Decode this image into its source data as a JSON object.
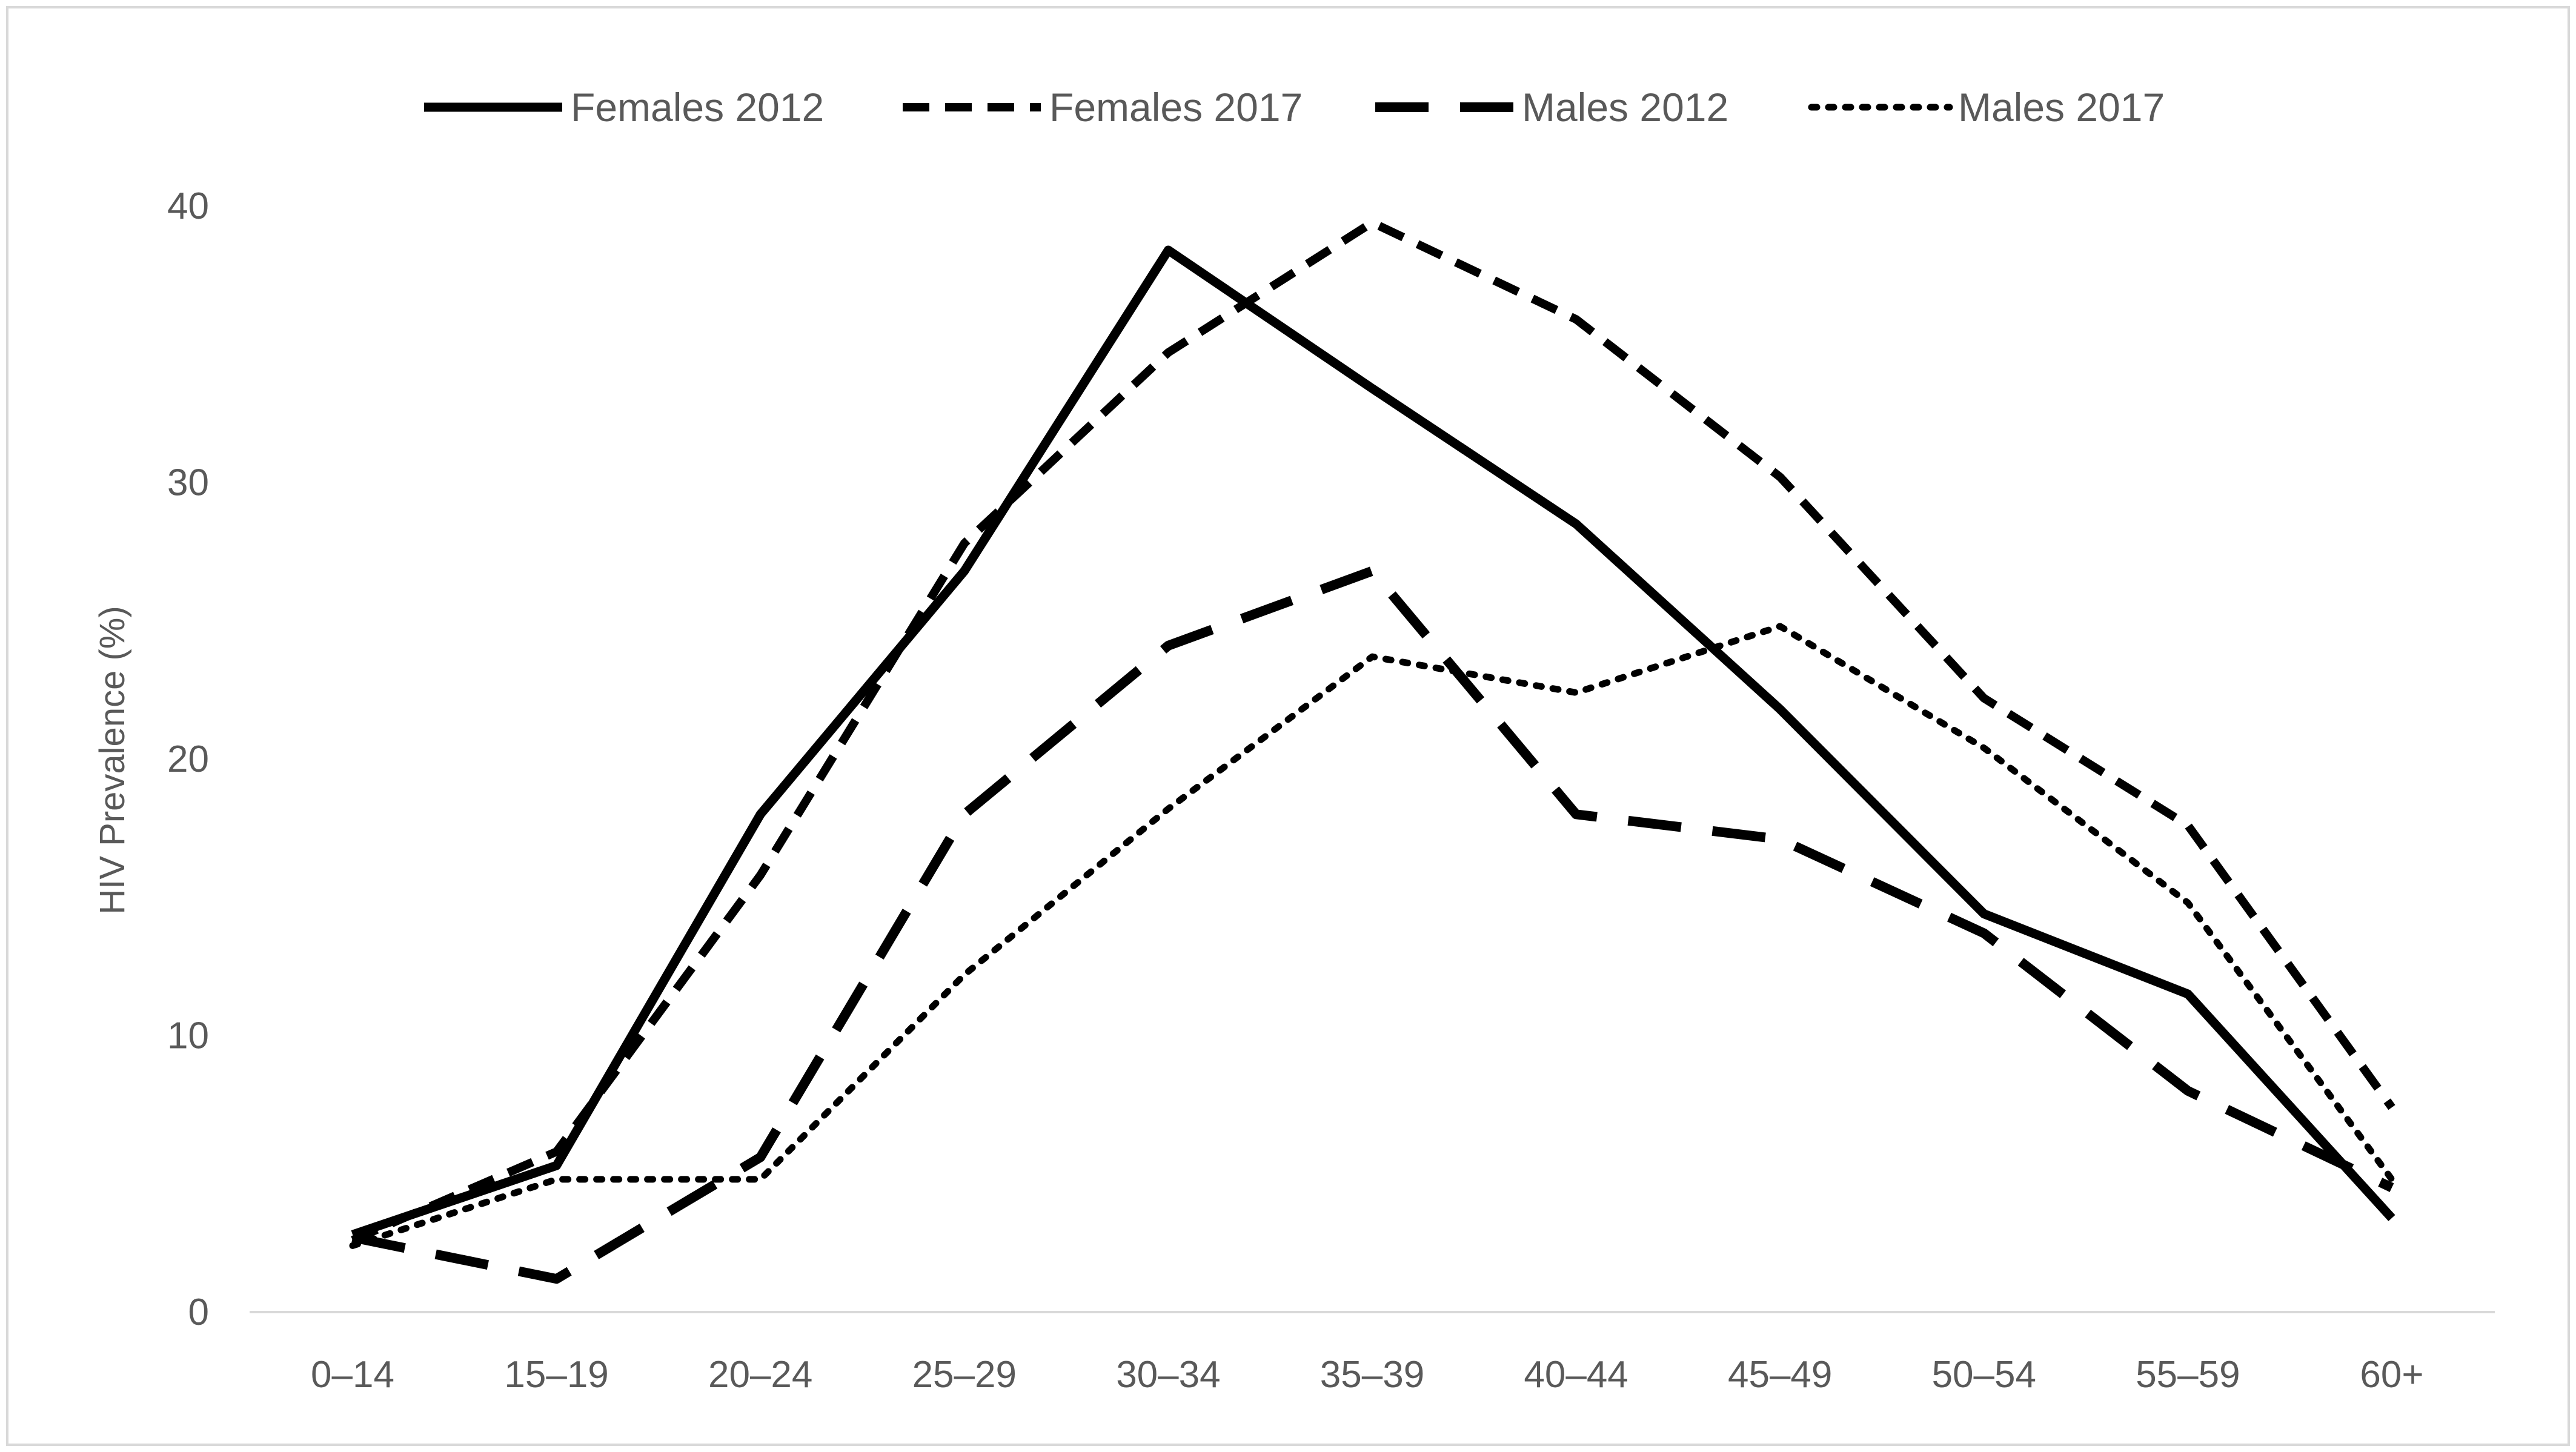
{
  "chart_data": {
    "type": "line",
    "title": "",
    "xlabel": "",
    "ylabel": "HIV Prevalence (%)",
    "ylim": [
      0,
      40
    ],
    "yticks": [
      "0",
      "10",
      "20",
      "30",
      "40"
    ],
    "grid": false,
    "legend_position": "top",
    "categories": [
      "0–14",
      "15–19",
      "20–24",
      "25–29",
      "30–34",
      "35–39",
      "40–44",
      "45–49",
      "50–54",
      "55–59",
      "60+"
    ],
    "series": [
      {
        "name": "Females 2012",
        "style": "solid",
        "color": "#000000",
        "values": [
          2.8,
          5.3,
          18.0,
          26.8,
          38.4,
          33.4,
          28.5,
          21.8,
          14.4,
          11.5,
          3.4
        ]
      },
      {
        "name": "Females 2017",
        "style": "dashed",
        "color": "#000000",
        "values": [
          2.6,
          5.8,
          15.8,
          27.8,
          34.7,
          39.4,
          35.9,
          30.2,
          22.2,
          17.6,
          7.4
        ]
      },
      {
        "name": "Males 2012",
        "style": "long-dashed",
        "color": "#000000",
        "values": [
          2.7,
          1.2,
          5.6,
          18.0,
          24.1,
          26.8,
          18.0,
          17.1,
          13.7,
          8.0,
          4.5
        ]
      },
      {
        "name": "Males 2017",
        "style": "dotted",
        "color": "#000000",
        "values": [
          2.4,
          4.8,
          4.8,
          12.2,
          18.2,
          23.7,
          22.4,
          24.8,
          20.4,
          14.8,
          4.8
        ]
      }
    ]
  }
}
